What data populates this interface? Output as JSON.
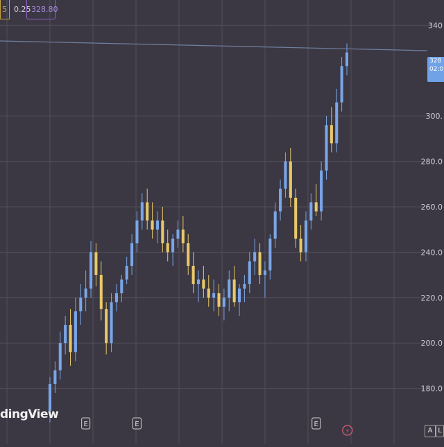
{
  "header": {
    "interval_badge": "5",
    "change": "0.25",
    "price_box": "328.80"
  },
  "watermark": "dingView",
  "price_tag": {
    "line1": "328",
    "line2": "02:0"
  },
  "corner_buttons": [
    "A",
    "L"
  ],
  "colors": {
    "background": "#3b3843",
    "grid": "#514d59",
    "up_candle": "#7aa6e8",
    "down_candle": "#e8c86a",
    "price_line": "#6f7fa0",
    "axis_text": "#cfcbd6"
  },
  "chart_data": {
    "type": "candlestick",
    "title": "",
    "xlabel": "",
    "ylabel": "",
    "ylim": [
      160,
      345
    ],
    "y_ticks": [
      {
        "value": 340,
        "label": "340"
      },
      {
        "value": 300,
        "label": "300."
      },
      {
        "value": 280,
        "label": "280.0"
      },
      {
        "value": 260,
        "label": "260.0"
      },
      {
        "value": 240,
        "label": "240.0"
      },
      {
        "value": 220,
        "label": "220.0"
      },
      {
        "value": 200,
        "label": "200.0"
      },
      {
        "value": 180,
        "label": "180.0"
      }
    ],
    "current_price_line": 328.8,
    "earnings_markers": [
      {
        "index": 7,
        "label": "E"
      },
      {
        "index": 17,
        "label": "E"
      },
      {
        "index": 52,
        "label": "E"
      }
    ],
    "other_markers": [
      {
        "index": 60,
        "label": "⚡"
      }
    ],
    "candles": [
      [
        170,
        185,
        165,
        182
      ],
      [
        182,
        192,
        178,
        188
      ],
      [
        188,
        205,
        184,
        200
      ],
      [
        200,
        212,
        195,
        208
      ],
      [
        208,
        215,
        190,
        196
      ],
      [
        196,
        220,
        192,
        214
      ],
      [
        214,
        226,
        208,
        220
      ],
      [
        220,
        232,
        214,
        224
      ],
      [
        224,
        245,
        220,
        240
      ],
      [
        240,
        244,
        225,
        230
      ],
      [
        230,
        236,
        210,
        215
      ],
      [
        215,
        218,
        195,
        200
      ],
      [
        200,
        222,
        196,
        218
      ],
      [
        218,
        226,
        214,
        222
      ],
      [
        222,
        230,
        218,
        228
      ],
      [
        228,
        238,
        226,
        234
      ],
      [
        234,
        248,
        230,
        244
      ],
      [
        244,
        258,
        240,
        254
      ],
      [
        254,
        266,
        250,
        262
      ],
      [
        262,
        268,
        250,
        254
      ],
      [
        254,
        262,
        246,
        250
      ],
      [
        250,
        258,
        244,
        254
      ],
      [
        254,
        260,
        240,
        244
      ],
      [
        244,
        250,
        236,
        240
      ],
      [
        240,
        248,
        234,
        246
      ],
      [
        246,
        254,
        242,
        250
      ],
      [
        250,
        256,
        240,
        244
      ],
      [
        244,
        248,
        230,
        234
      ],
      [
        234,
        240,
        222,
        226
      ],
      [
        226,
        232,
        218,
        228
      ],
      [
        228,
        234,
        220,
        224
      ],
      [
        224,
        230,
        216,
        220
      ],
      [
        220,
        228,
        214,
        222
      ],
      [
        222,
        226,
        212,
        216
      ],
      [
        216,
        224,
        210,
        220
      ],
      [
        220,
        232,
        214,
        228
      ],
      [
        228,
        234,
        216,
        218
      ],
      [
        218,
        226,
        212,
        224
      ],
      [
        224,
        230,
        218,
        226
      ],
      [
        226,
        240,
        222,
        236
      ],
      [
        236,
        246,
        230,
        240
      ],
      [
        240,
        244,
        226,
        230
      ],
      [
        230,
        236,
        220,
        232
      ],
      [
        232,
        248,
        228,
        246
      ],
      [
        246,
        262,
        242,
        258
      ],
      [
        258,
        272,
        254,
        268
      ],
      [
        268,
        284,
        264,
        280
      ],
      [
        280,
        286,
        260,
        264
      ],
      [
        264,
        268,
        242,
        246
      ],
      [
        246,
        252,
        236,
        240
      ],
      [
        240,
        258,
        236,
        254
      ],
      [
        254,
        266,
        250,
        262
      ],
      [
        262,
        270,
        256,
        258
      ],
      [
        258,
        280,
        254,
        276
      ],
      [
        276,
        300,
        272,
        296
      ],
      [
        296,
        304,
        284,
        288
      ],
      [
        288,
        312,
        284,
        306
      ],
      [
        306,
        326,
        302,
        322
      ],
      [
        322,
        332,
        318,
        328
      ]
    ]
  }
}
